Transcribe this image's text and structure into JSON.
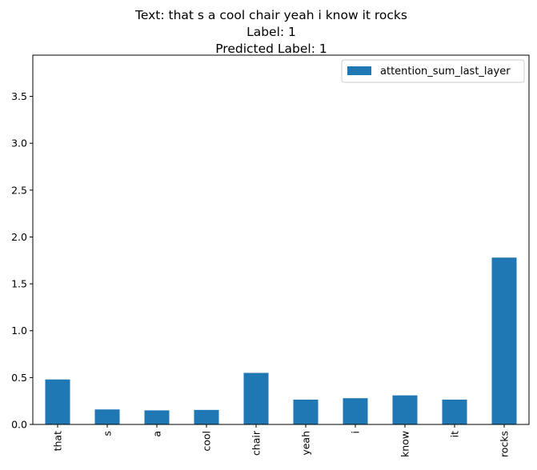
{
  "chart_data": {
    "type": "bar",
    "title_lines": [
      "Text: that s a cool chair yeah i know it rocks",
      "Label: 1",
      "Predicted Label: 1"
    ],
    "xlabel": "",
    "ylabel": "",
    "categories": [
      "that",
      "s",
      "a",
      "cool",
      "chair",
      "yeah",
      "i",
      "know",
      "it",
      "rocks"
    ],
    "series": [
      {
        "name": "attention_sum_last_layer",
        "color": "#1f77b4",
        "values": [
          0.48,
          0.16,
          0.15,
          0.155,
          0.55,
          0.265,
          0.28,
          0.31,
          0.265,
          1.78
        ]
      }
    ],
    "ylim": [
      0,
      3.94
    ],
    "yticks": [
      0.0,
      0.5,
      1.0,
      1.5,
      2.0,
      2.5,
      3.0,
      3.5
    ],
    "ytick_labels": [
      "0.0",
      "0.5",
      "1.0",
      "1.5",
      "2.0",
      "2.5",
      "3.0",
      "3.5"
    ],
    "grid": false,
    "legend_position": "top-right"
  }
}
